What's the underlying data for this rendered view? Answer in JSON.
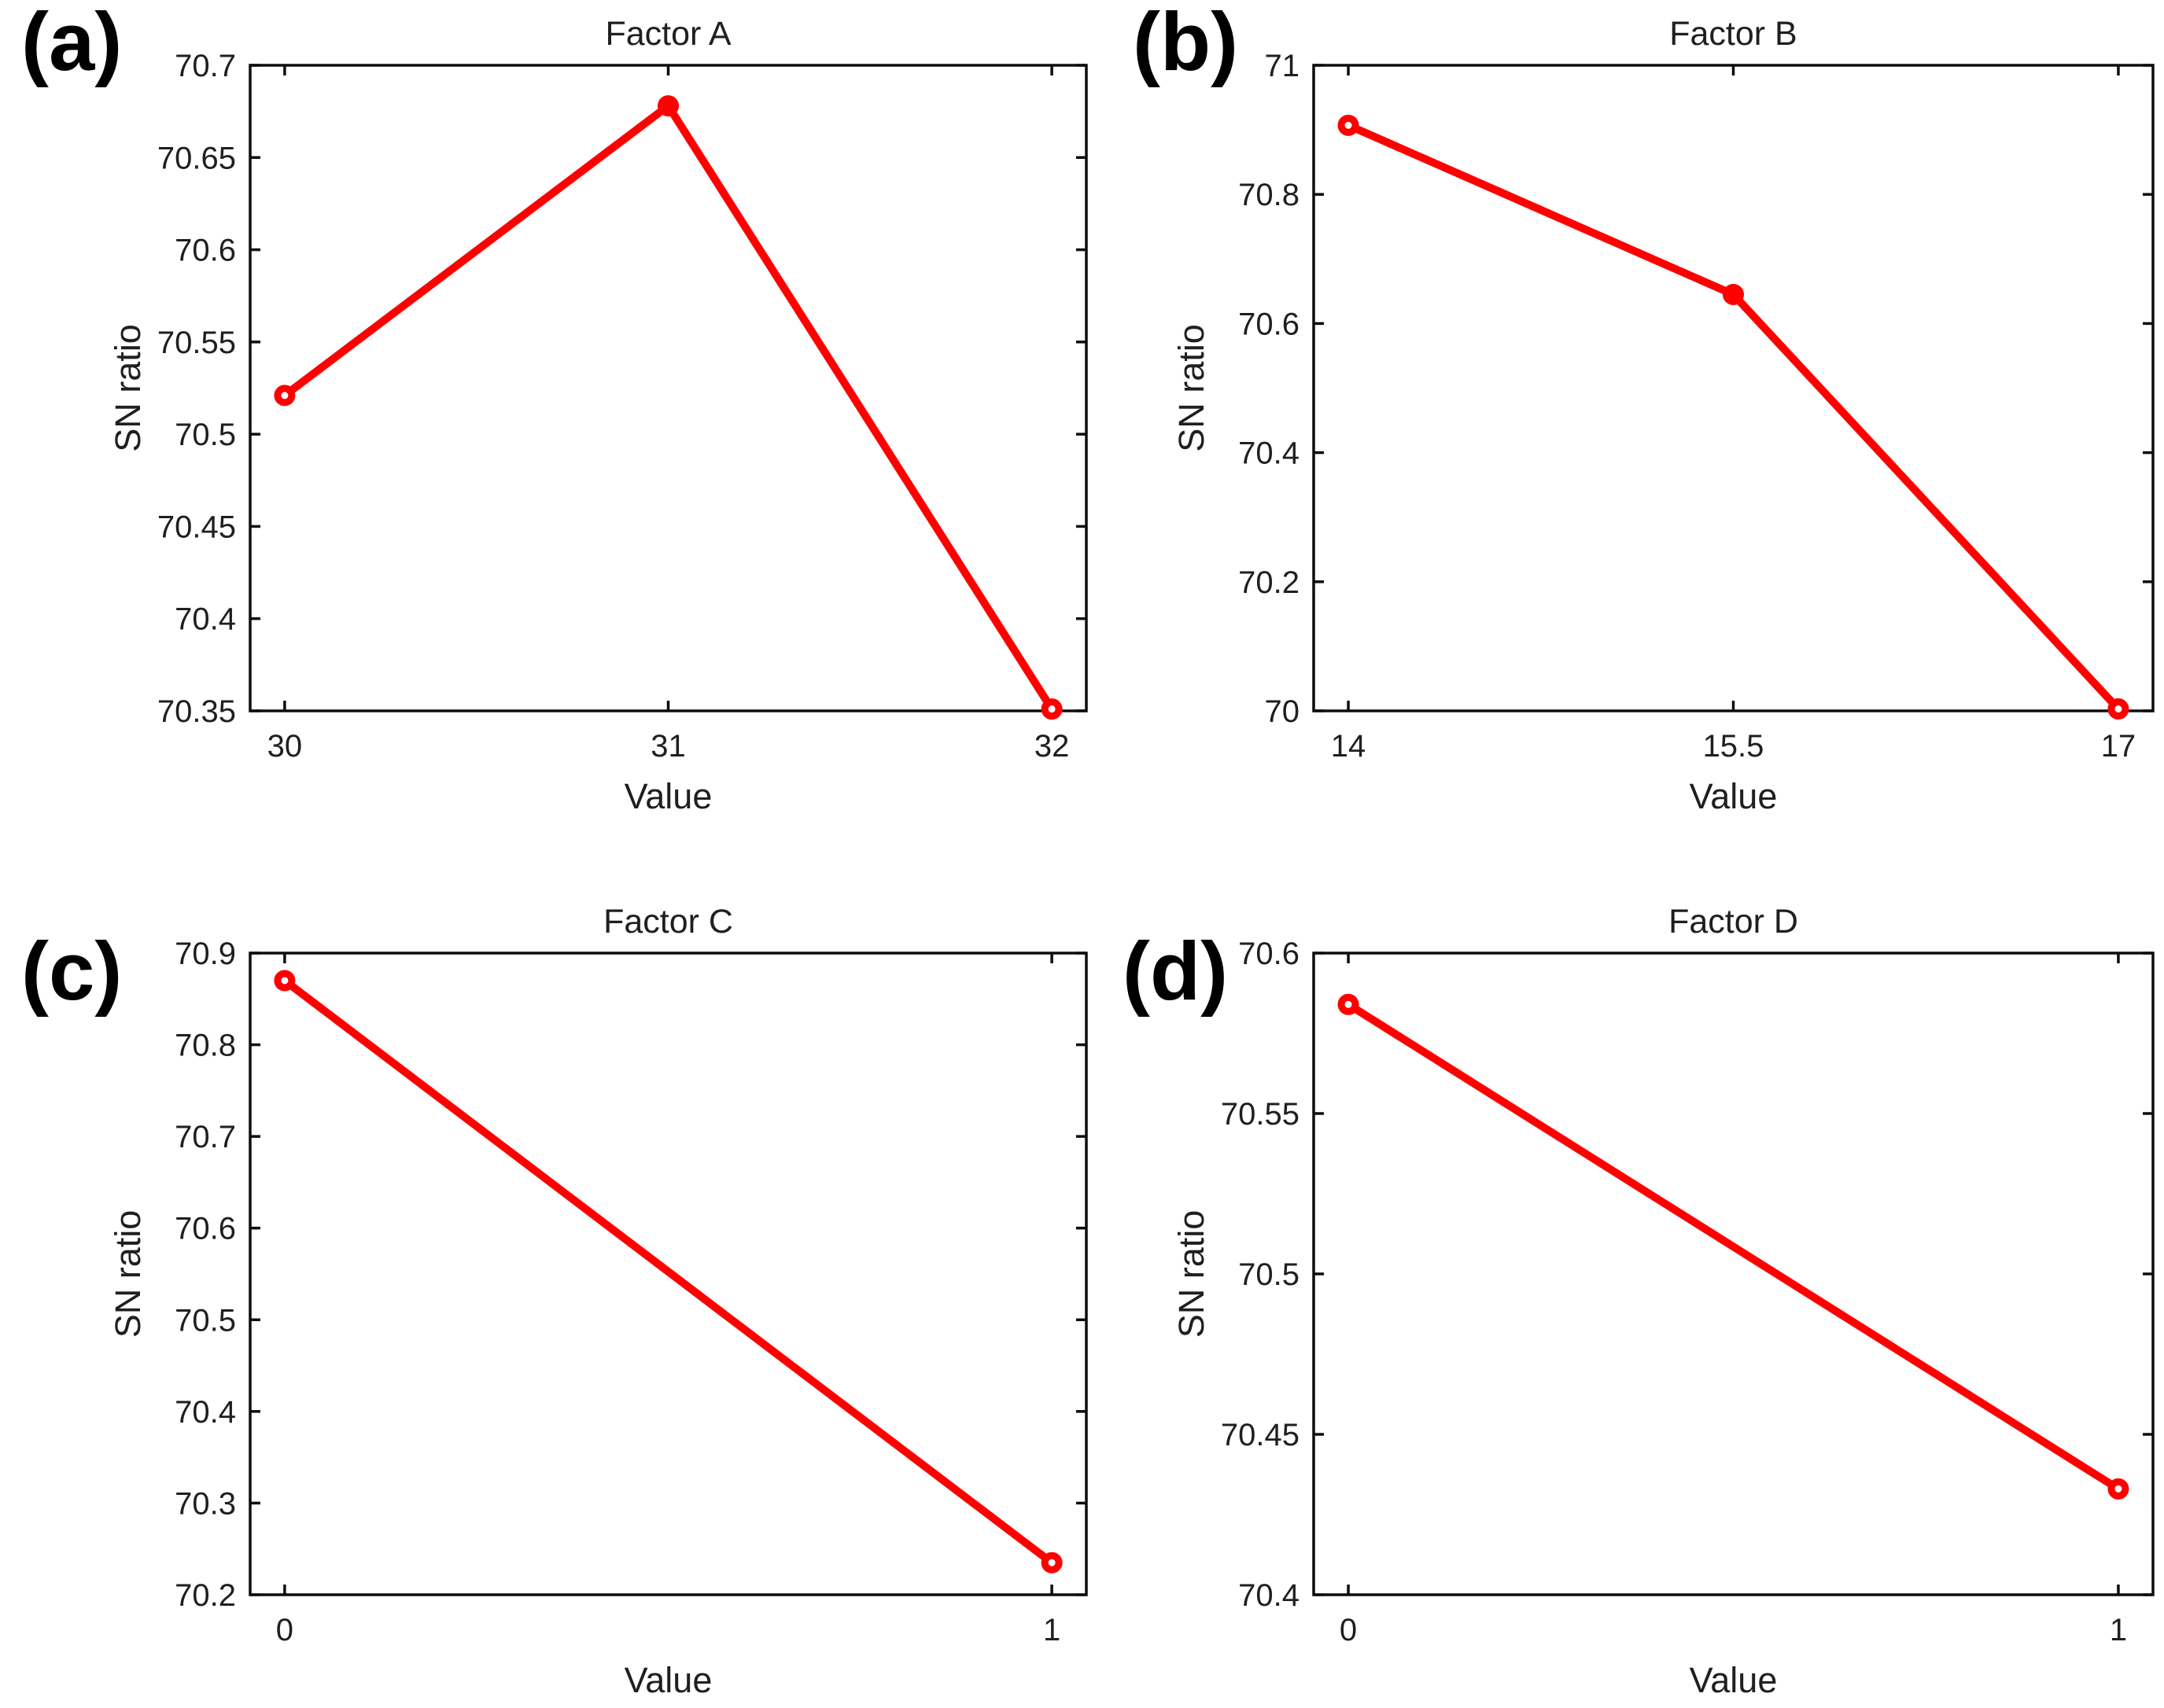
{
  "figure": {
    "background": "#ffffff",
    "line_color": "#ff0000",
    "axis_color": "#0d0d0d",
    "tick_text_color": "#1f1f1f",
    "panel_letters": [
      "(a)",
      "(b)",
      "(c)",
      "(d)"
    ]
  },
  "chart_data": [
    {
      "type": "line",
      "panel_label": "(a)",
      "title": "Factor A",
      "xlabel": "Value",
      "ylabel": "SN ratio",
      "x": [
        30,
        31,
        32
      ],
      "y": [
        70.521,
        70.678,
        70.351
      ],
      "x_tick_values": [
        30,
        31,
        32
      ],
      "x_tick_labels": [
        "30",
        "31",
        "32"
      ],
      "y_tick_values": [
        70.35,
        70.4,
        70.45,
        70.5,
        70.55,
        70.6,
        70.65,
        70.7
      ],
      "y_tick_labels": [
        "70.35",
        "70.4",
        "70.45",
        "70.5",
        "70.55",
        "70.6",
        "70.65",
        "70.7"
      ],
      "xlim": [
        29.91,
        32.09
      ],
      "ylim": [
        70.35,
        70.7
      ],
      "marker_styles": [
        "open",
        "filled",
        "open"
      ],
      "grid": false,
      "legend": null
    },
    {
      "type": "line",
      "panel_label": "(b)",
      "title": "Factor B",
      "xlabel": "Value",
      "ylabel": "SN ratio",
      "x": [
        14,
        15.5,
        17
      ],
      "y": [
        70.907,
        70.645,
        70.003
      ],
      "x_tick_values": [
        14,
        15.5,
        17
      ],
      "x_tick_labels": [
        "14",
        "15.5",
        "17"
      ],
      "y_tick_values": [
        70,
        70.2,
        70.4,
        70.6,
        70.8,
        71
      ],
      "y_tick_labels": [
        "70",
        "70.2",
        "70.4",
        "70.6",
        "70.8",
        "71"
      ],
      "xlim": [
        13.865,
        17.135
      ],
      "ylim": [
        70,
        71
      ],
      "marker_styles": [
        "open",
        "filled",
        "open"
      ],
      "grid": false,
      "legend": null
    },
    {
      "type": "line",
      "panel_label": "(c)",
      "title": "Factor C",
      "xlabel": "Value",
      "ylabel": "SN ratio",
      "x": [
        0,
        1
      ],
      "y": [
        70.87,
        70.235
      ],
      "x_tick_values": [
        0,
        1
      ],
      "x_tick_labels": [
        "0",
        "1"
      ],
      "y_tick_values": [
        70.2,
        70.3,
        70.4,
        70.5,
        70.6,
        70.7,
        70.8,
        70.9
      ],
      "y_tick_labels": [
        "70.2",
        "70.3",
        "70.4",
        "70.5",
        "70.6",
        "70.7",
        "70.8",
        "70.9"
      ],
      "xlim": [
        -0.045,
        1.045
      ],
      "ylim": [
        70.2,
        70.9
      ],
      "marker_styles": [
        "open",
        "open"
      ],
      "grid": false,
      "legend": null
    },
    {
      "type": "line",
      "panel_label": "(d)",
      "title": "Factor D",
      "xlabel": "Value",
      "ylabel": "SN ratio",
      "x": [
        0,
        1
      ],
      "y": [
        70.584,
        70.433
      ],
      "x_tick_values": [
        0,
        1
      ],
      "x_tick_labels": [
        "0",
        "1"
      ],
      "y_tick_values": [
        70.4,
        70.45,
        70.5,
        70.55,
        70.6
      ],
      "y_tick_labels": [
        "70.4",
        "70.45",
        "70.5",
        "70.55",
        "70.6"
      ],
      "xlim": [
        -0.045,
        1.045
      ],
      "ylim": [
        70.4,
        70.6
      ],
      "marker_styles": [
        "open",
        "open"
      ],
      "grid": false,
      "legend": null
    }
  ]
}
